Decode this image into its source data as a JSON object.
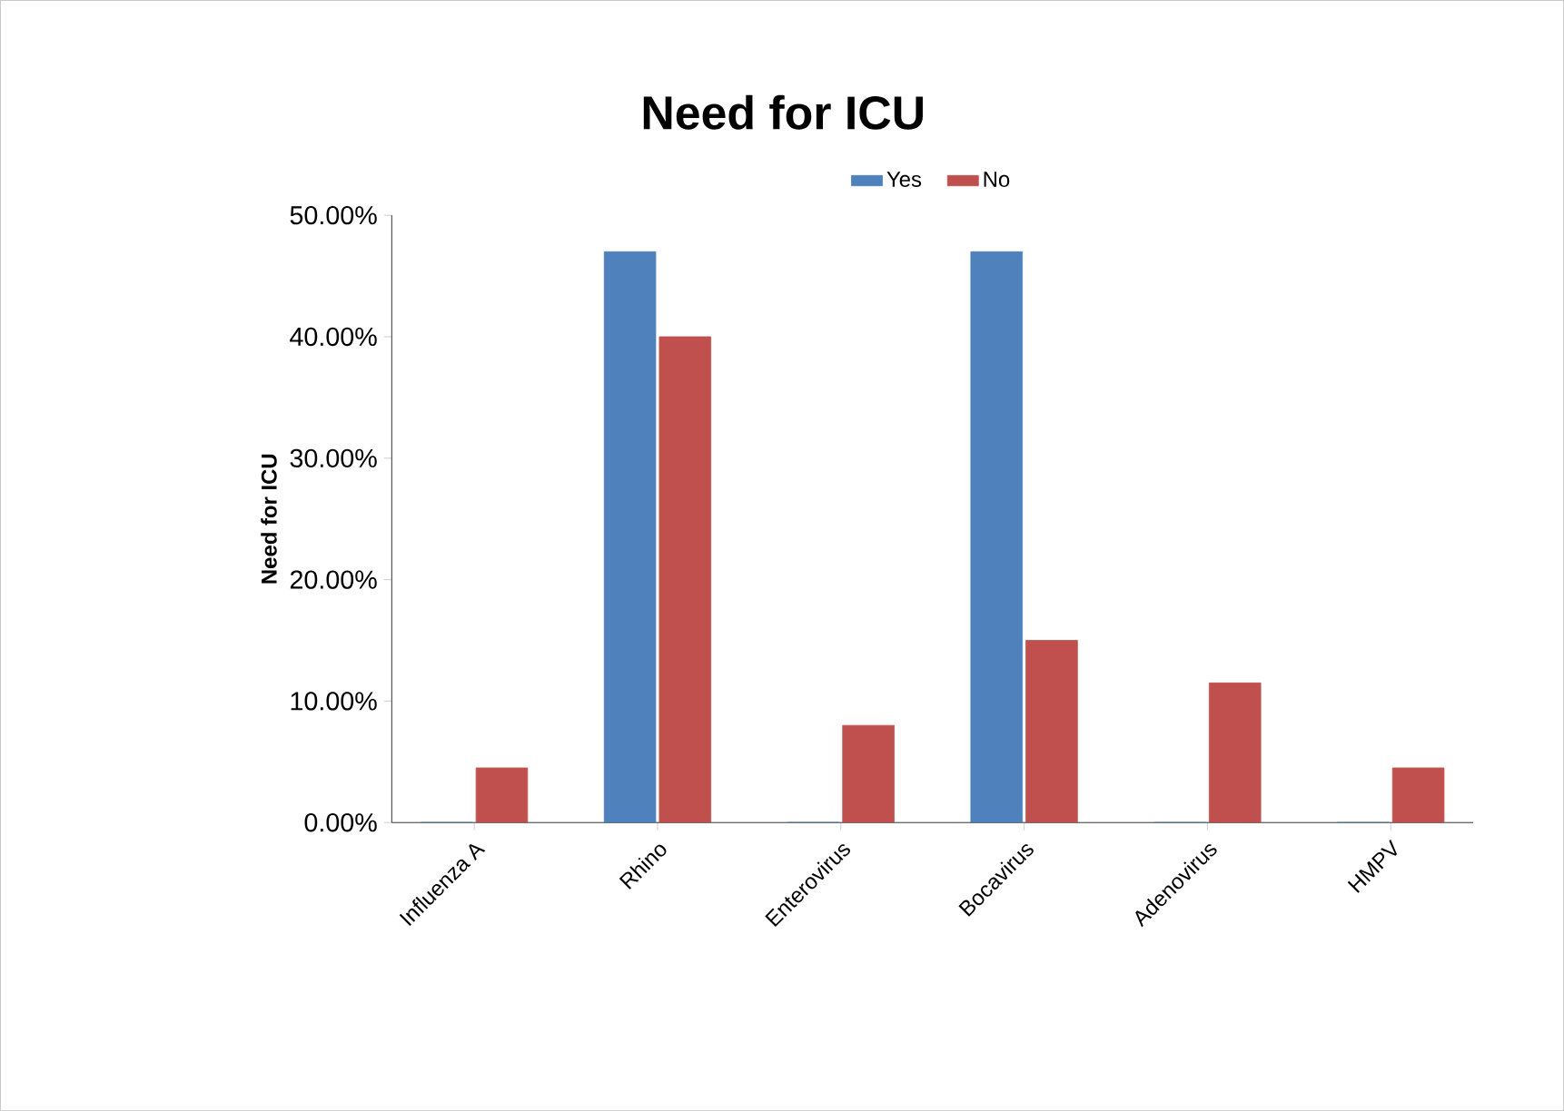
{
  "chart_data": {
    "type": "bar",
    "title": "Need for ICU",
    "ylabel": "Need for ICU",
    "categories": [
      "Influenza A",
      "Rhino",
      "Enterovirus",
      "Bocavirus",
      "Adenovirus",
      "HMPV"
    ],
    "series": [
      {
        "name": "Yes",
        "color": "#4f81bd",
        "values": [
          0,
          47,
          0,
          47,
          0,
          0
        ]
      },
      {
        "name": "No",
        "color": "#c0504d",
        "values": [
          4.5,
          40,
          8,
          15,
          11.5,
          4.5
        ]
      }
    ],
    "ylim": [
      0,
      50
    ],
    "yticks": [
      {
        "value": 0,
        "label": "0.00%"
      },
      {
        "value": 10,
        "label": "10.00%"
      },
      {
        "value": 20,
        "label": "20.00%"
      },
      {
        "value": 30,
        "label": "30.00%"
      },
      {
        "value": 40,
        "label": "40.00%"
      },
      {
        "value": 50,
        "label": "50.00%"
      }
    ],
    "grid": false,
    "legend": "top"
  }
}
